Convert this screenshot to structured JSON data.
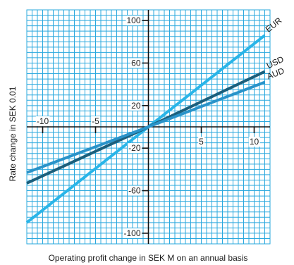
{
  "chart_data": {
    "type": "line",
    "xlabel": "Operating profit change in SEK M on an annual basis",
    "ylabel": "Rate change in SEK 0.01",
    "xlim": [
      -11.5,
      11.5
    ],
    "ylim": [
      -110,
      110
    ],
    "grid": true,
    "x_ticks": [
      {
        "value": -10,
        "label": "-10"
      },
      {
        "value": -5,
        "label": "-5"
      },
      {
        "value": 5,
        "label": "5"
      },
      {
        "value": 10,
        "label": "10"
      }
    ],
    "y_ticks": [
      {
        "value": 100,
        "label": "100"
      },
      {
        "value": 60,
        "label": "60"
      },
      {
        "value": 20,
        "label": "20"
      },
      {
        "value": -20,
        "label": "-20"
      },
      {
        "value": -60,
        "label": "-60"
      },
      {
        "value": -100,
        "label": "-100"
      }
    ],
    "series": [
      {
        "name": "EUR",
        "color": "#29b5e8",
        "x": [
          -11.5,
          0,
          11
        ],
        "y": [
          -90,
          0,
          86
        ]
      },
      {
        "name": "USD",
        "color": "#1b5f7c",
        "x": [
          -11.5,
          0,
          11
        ],
        "y": [
          -53,
          0,
          52
        ]
      },
      {
        "name": "AUD",
        "color": "#2a93c9",
        "x": [
          -11.5,
          0,
          11
        ],
        "y": [
          -43,
          0,
          42
        ]
      }
    ],
    "colors": {
      "grid": "#2aa8de",
      "axis": "#111111",
      "background": "#ffffff"
    }
  }
}
